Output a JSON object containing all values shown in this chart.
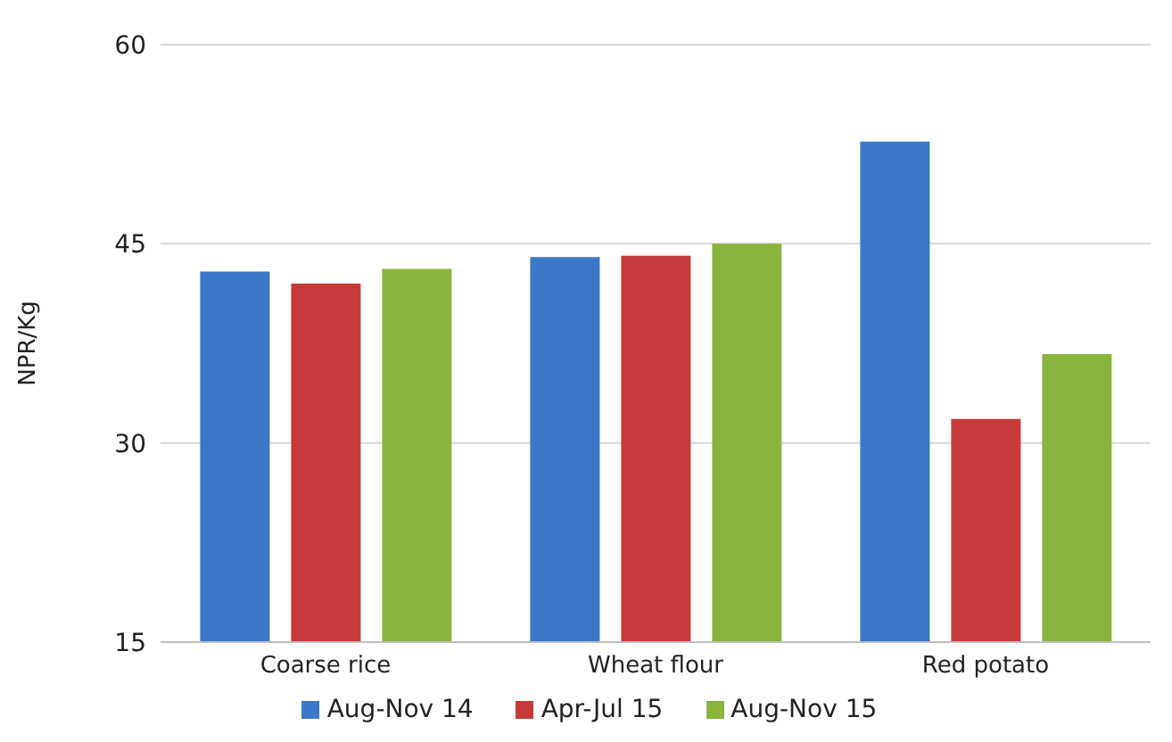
{
  "chart_data": {
    "type": "bar",
    "ylabel": "NPR/Kg",
    "categories": [
      "Coarse rice",
      "Wheat flour",
      "Red potato"
    ],
    "series": [
      {
        "name": "Aug-Nov 14",
        "color": "#3b78c8",
        "values": [
          42.9,
          44.0,
          52.7
        ]
      },
      {
        "name": "Apr-Jul 15",
        "color": "#c83a3a",
        "values": [
          42.0,
          44.1,
          31.8
        ]
      },
      {
        "name": "Aug-Nov 15",
        "color": "#8ab43e",
        "values": [
          43.1,
          45.0,
          36.7
        ]
      }
    ],
    "ylim": [
      15,
      60
    ],
    "yticks": [
      15,
      30,
      45,
      60
    ],
    "grid": "y",
    "legend": "bottom"
  }
}
